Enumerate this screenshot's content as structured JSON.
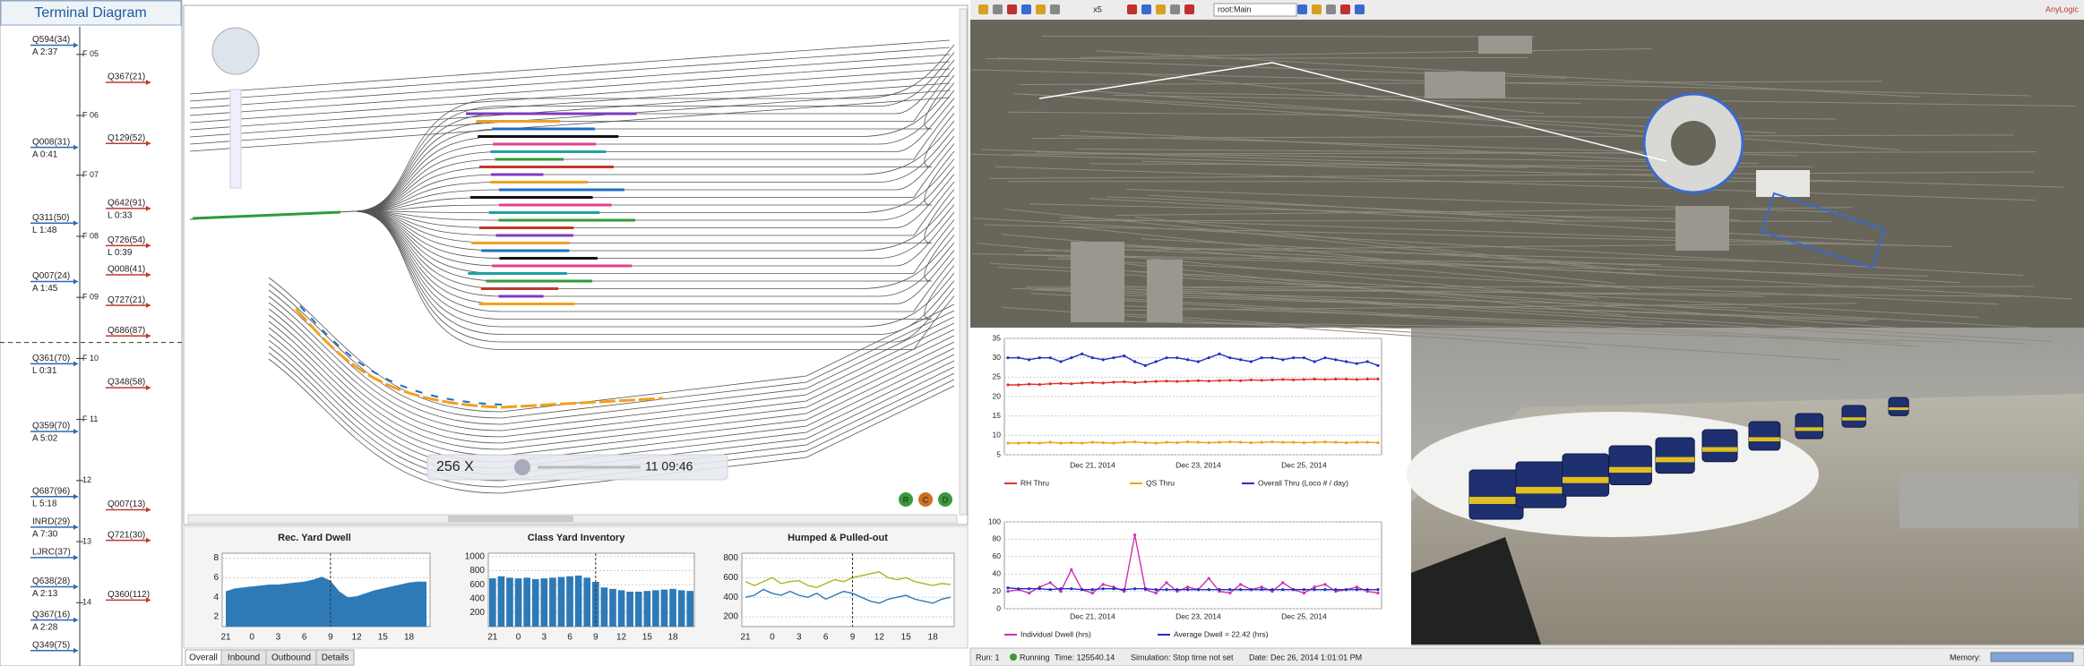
{
  "toolbar": {
    "speed": "x5",
    "model": "root:Main",
    "brand": "AnyLogic"
  },
  "terminal": {
    "title": "Terminal Diagram",
    "hours": [
      "F 05",
      "F 06",
      "F 07",
      "F 08",
      "F 09",
      "F 10",
      "F 11",
      "12",
      "13",
      "14"
    ],
    "left_trains": [
      {
        "name": "Q594(34)",
        "note": "A 2:37"
      },
      {
        "name": "Q008(31)",
        "note": "A 0:41"
      },
      {
        "name": "Q311(50)",
        "note": "L 1:48"
      },
      {
        "name": "Q007(24)",
        "note": "A 1:45"
      },
      {
        "name": "Q361(70)",
        "note": "L 0:31"
      },
      {
        "name": "Q359(70)",
        "note": "A 5:02"
      },
      {
        "name": "Q687(96)",
        "note": "L 5:18"
      },
      {
        "name": "INRD(29)",
        "note": "A 7:30"
      },
      {
        "name": "LJRC(37)"
      },
      {
        "name": "Q638(28)",
        "note": "A 2:13"
      },
      {
        "name": "Q367(16)",
        "note": "A 2:28"
      },
      {
        "name": "Q349(75)"
      }
    ],
    "right_trains": [
      {
        "name": "Q367(21)"
      },
      {
        "name": "Q129(52)"
      },
      {
        "name": "Q642(91)",
        "note": "L 0:33"
      },
      {
        "name": "Q726(54)",
        "note": "L 0:39"
      },
      {
        "name": "Q008(41)"
      },
      {
        "name": "Q727(21)"
      },
      {
        "name": "Q686(87)"
      },
      {
        "name": "Q348(58)"
      },
      {
        "name": "Q007(13)"
      },
      {
        "name": "Q721(30)"
      },
      {
        "name": "Q360(112)"
      }
    ]
  },
  "yard": {
    "speed": "256 X",
    "clock": "11 09:46",
    "buttons": [
      "R",
      "C",
      "D"
    ]
  },
  "tabs": [
    "Overall",
    "Inbound",
    "Outbound",
    "Details"
  ],
  "status": {
    "run": "Run: 1",
    "state": "Running",
    "time": "Time: 125540.14",
    "simulation": "Simulation: Stop time not set",
    "date": "Date: Dec 26, 2014 1:01:01 PM",
    "memory": "Memory:"
  },
  "chart_data": [
    {
      "type": "area",
      "title": "Rec. Yard Dwell",
      "color": "#2e7ab6",
      "categories": [
        "21",
        null,
        null,
        "0",
        null,
        null,
        "3",
        null,
        null,
        "6",
        null,
        null,
        "9",
        null,
        null,
        "12",
        null,
        null,
        "15",
        null,
        null,
        "18",
        null,
        null
      ],
      "values": [
        4.6,
        4.9,
        5.0,
        5.1,
        5.2,
        5.3,
        5.3,
        5.4,
        5.5,
        5.6,
        5.8,
        6.1,
        5.7,
        4.6,
        4.0,
        4.1,
        4.4,
        4.7,
        4.9,
        5.1,
        5.3,
        5.5,
        5.6,
        5.6
      ],
      "ylim": [
        1,
        8.5
      ],
      "yticks": [
        2,
        4,
        6,
        8
      ],
      "grid": true
    },
    {
      "type": "bar",
      "title": "Class Yard Inventory",
      "color": "#2e7ab6",
      "categories": [
        "21",
        null,
        null,
        "0",
        null,
        null,
        "3",
        null,
        null,
        "6",
        null,
        null,
        "9",
        null,
        null,
        "12",
        null,
        null,
        "15",
        null,
        null,
        "18",
        null,
        null
      ],
      "values": [
        690,
        720,
        700,
        690,
        700,
        680,
        690,
        700,
        710,
        720,
        730,
        700,
        640,
        560,
        540,
        520,
        500,
        500,
        510,
        520,
        530,
        540,
        520,
        510
      ],
      "ylim": [
        0,
        1050
      ],
      "yticks": [
        200,
        400,
        600,
        800,
        1000
      ],
      "grid": true
    },
    {
      "type": "line",
      "title": "Humped & Pulled-out",
      "categories": [
        "21",
        null,
        null,
        "0",
        null,
        null,
        "3",
        null,
        null,
        "6",
        null,
        null,
        "9",
        null,
        null,
        "12",
        null,
        null,
        "15",
        null,
        null,
        "18",
        null,
        null
      ],
      "series": [
        {
          "color": "#a8b820",
          "values": [
            560,
            520,
            560,
            600,
            540,
            560,
            570,
            520,
            500,
            540,
            580,
            560,
            600,
            620,
            640,
            660,
            600,
            580,
            600,
            560,
            540,
            520,
            540,
            530
          ]
        },
        {
          "color": "#2e7ab6",
          "values": [
            400,
            420,
            480,
            440,
            420,
            460,
            420,
            400,
            440,
            380,
            420,
            460,
            440,
            400,
            360,
            340,
            380,
            400,
            420,
            380,
            360,
            340,
            380,
            400
          ]
        }
      ],
      "ylim": [
        100,
        850
      ],
      "yticks": [
        200,
        400,
        600,
        800
      ],
      "grid": true
    },
    {
      "type": "line",
      "categories": [
        null,
        null,
        null,
        null,
        null,
        null,
        null,
        null,
        "Dec 21, 2014",
        null,
        null,
        null,
        null,
        null,
        null,
        null,
        null,
        null,
        "Dec 23, 2014",
        null,
        null,
        null,
        null,
        null,
        null,
        null,
        null,
        null,
        "Dec 25, 2014",
        null,
        null,
        null,
        null,
        null,
        null,
        null
      ],
      "series": [
        {
          "name": "RH Thru",
          "color": "#e0302a",
          "values": [
            23,
            23,
            23.2,
            23.1,
            23.3,
            23.4,
            23.3,
            23.5,
            23.6,
            23.5,
            23.7,
            23.8,
            23.6,
            23.8,
            23.9,
            24,
            23.9,
            24,
            24.1,
            24,
            24.1,
            24.2,
            24.1,
            24.3,
            24.2,
            24.3,
            24.4,
            24.3,
            24.4,
            24.5,
            24.4,
            24.5,
            24.5,
            24.4,
            24.5,
            24.5
          ]
        },
        {
          "name": "QS Thru",
          "color": "#f0a020",
          "values": [
            8,
            8,
            8.1,
            8,
            8.2,
            8,
            8.1,
            8,
            8.2,
            8.1,
            8,
            8.2,
            8.3,
            8.1,
            8,
            8.2,
            8.1,
            8.3,
            8.2,
            8.1,
            8.2,
            8.3,
            8.2,
            8.1,
            8.2,
            8.3,
            8.2,
            8.2,
            8.1,
            8.2,
            8.3,
            8.2,
            8.1,
            8.2,
            8.2,
            8.1
          ]
        },
        {
          "name": "Overall Thru (Loco # / day)",
          "color": "#2030c0",
          "values": [
            30,
            30,
            29.5,
            30,
            30,
            29,
            30,
            31,
            30,
            29.5,
            30,
            30.5,
            29,
            28,
            29,
            30,
            30,
            29.5,
            29,
            30,
            31,
            30,
            29.5,
            29,
            30,
            30,
            29.5,
            30,
            30,
            29,
            30,
            29.5,
            29,
            28.5,
            29,
            28
          ]
        }
      ],
      "ylim": [
        5,
        35
      ],
      "yticks": [
        5,
        10,
        15,
        20,
        25,
        30,
        35
      ],
      "grid": true
    },
    {
      "type": "line",
      "categories": [
        null,
        null,
        null,
        null,
        null,
        null,
        null,
        null,
        "Dec 21, 2014",
        null,
        null,
        null,
        null,
        null,
        null,
        null,
        null,
        null,
        "Dec 23, 2014",
        null,
        null,
        null,
        null,
        null,
        null,
        null,
        null,
        null,
        "Dec 25, 2014",
        null,
        null,
        null,
        null,
        null,
        null,
        null
      ],
      "series": [
        {
          "name": "Individual Dwell (hrs)",
          "color": "#d030b0",
          "values": [
            20,
            22,
            18,
            25,
            30,
            20,
            45,
            22,
            18,
            28,
            25,
            20,
            85,
            22,
            18,
            30,
            20,
            25,
            22,
            35,
            20,
            18,
            28,
            22,
            25,
            20,
            30,
            22,
            18,
            25,
            28,
            20,
            22,
            25,
            20,
            18
          ]
        },
        {
          "name": "Average Dwell = 22.42 (hrs)",
          "color": "#2030c0",
          "values": [
            24,
            23,
            23,
            23,
            22,
            23,
            23,
            22,
            22,
            23,
            23,
            22,
            23,
            23,
            22,
            22,
            22,
            22,
            22,
            22,
            22,
            22,
            22,
            22,
            22,
            22,
            22,
            22,
            22,
            22,
            22,
            22,
            22,
            22,
            22,
            22
          ]
        }
      ],
      "ylim": [
        0,
        100
      ],
      "yticks": [
        0,
        20,
        40,
        60,
        80,
        100
      ],
      "grid": true
    }
  ]
}
